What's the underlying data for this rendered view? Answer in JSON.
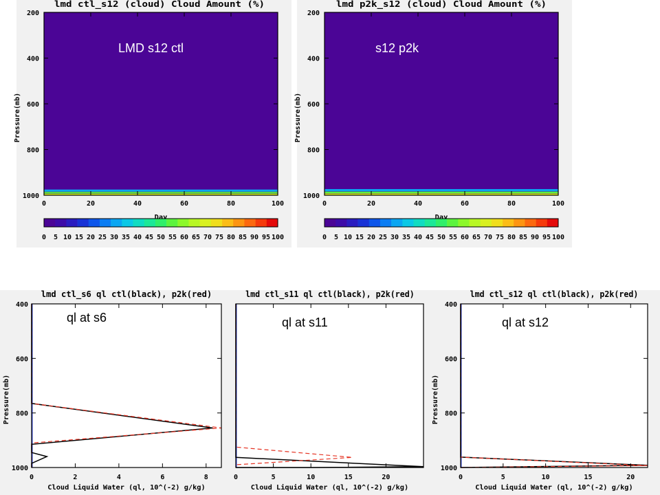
{
  "chart_data": [
    {
      "type": "heatmap",
      "title": "lmd ctl_s12  (cloud)  Cloud Amount (%)",
      "annotation": "LMD s12 ctl",
      "xlabel": "Day",
      "ylabel": "Pressure(mb)",
      "xlim": [
        0,
        100
      ],
      "ylim": [
        1000,
        200
      ],
      "xticks": [
        "0",
        "20",
        "40",
        "60",
        "80",
        "100"
      ],
      "yticks": [
        "200",
        "400",
        "600",
        "800",
        "1000"
      ],
      "background_value": 0,
      "bands": [
        {
          "p_top": 975,
          "p_bottom": 985,
          "value": 30
        },
        {
          "p_top": 985,
          "p_bottom": 993,
          "value": 55
        },
        {
          "p_top": 993,
          "p_bottom": 1000,
          "value": 70
        }
      ],
      "colorbar": {
        "labels": [
          "0",
          "5",
          "10",
          "15",
          "20",
          "25",
          "30",
          "35",
          "40",
          "45",
          "50",
          "55",
          "60",
          "65",
          "70",
          "75",
          "80",
          "85",
          "90",
          "95",
          "100"
        ],
        "colors": [
          "#4b0596",
          "#3d0ba8",
          "#2a1cc0",
          "#1832d6",
          "#0d55ea",
          "#0b7df3",
          "#0aa6f2",
          "#0ac8e6",
          "#10dcc2",
          "#1ce898",
          "#30ef6a",
          "#5cf43e",
          "#8cf82a",
          "#b8f724",
          "#d9f020",
          "#f0de1c",
          "#fbbd17",
          "#fd9512",
          "#fc690f",
          "#f53a0b",
          "#e40a0a"
        ]
      }
    },
    {
      "type": "heatmap",
      "title": "lmd p2k_s12  (cloud)  Cloud Amount (%)",
      "annotation": "s12 p2k",
      "xlabel": "Day",
      "ylabel": "Pressure(mb)",
      "xlim": [
        0,
        100
      ],
      "ylim": [
        1000,
        200
      ],
      "xticks": [
        "0",
        "20",
        "40",
        "60",
        "80",
        "100"
      ],
      "yticks": [
        "200",
        "400",
        "600",
        "800",
        "1000"
      ],
      "background_value": 0,
      "bands": [
        {
          "p_top": 973,
          "p_bottom": 984,
          "value": 30
        },
        {
          "p_top": 984,
          "p_bottom": 992,
          "value": 55
        },
        {
          "p_top": 992,
          "p_bottom": 1000,
          "value": 70
        }
      ],
      "colorbar": {
        "labels": [
          "0",
          "5",
          "10",
          "15",
          "20",
          "25",
          "30",
          "35",
          "40",
          "45",
          "50",
          "55",
          "60",
          "65",
          "70",
          "75",
          "80",
          "85",
          "90",
          "95",
          "100"
        ],
        "colors": [
          "#4b0596",
          "#3d0ba8",
          "#2a1cc0",
          "#1832d6",
          "#0d55ea",
          "#0b7df3",
          "#0aa6f2",
          "#0ac8e6",
          "#10dcc2",
          "#1ce898",
          "#30ef6a",
          "#5cf43e",
          "#8cf82a",
          "#b8f724",
          "#d9f020",
          "#f0de1c",
          "#fbbd17",
          "#fd9512",
          "#fc690f",
          "#f53a0b",
          "#e40a0a"
        ]
      }
    },
    {
      "type": "line",
      "title": "lmd ctl_s6 ql ctl(black), p2k(red)",
      "annotation": "ql at s6",
      "xlabel": "Cloud Liquid Water (ql, 10^(-2) g/kg)",
      "ylabel": "Pressure(mb)",
      "xlim": [
        0,
        8.7
      ],
      "ylim": [
        1000,
        400
      ],
      "xticks": [
        "0",
        "2",
        "4",
        "6",
        "8"
      ],
      "yticks": [
        "400",
        "600",
        "800",
        "1000"
      ],
      "series": [
        {
          "color": "#000000",
          "style": "solid",
          "points": [
            [
              0,
              400
            ],
            [
              0,
              765
            ],
            [
              8.3,
              855
            ],
            [
              0,
              915
            ],
            [
              0,
              945
            ],
            [
              0.7,
              960
            ],
            [
              0,
              985
            ],
            [
              0,
              1000
            ]
          ]
        },
        {
          "color": "#e53222",
          "style": "dashed",
          "points": [
            [
              0,
              400
            ],
            [
              0,
              765
            ],
            [
              8.7,
              855
            ],
            [
              0,
              910
            ],
            [
              0,
              1000
            ]
          ]
        }
      ]
    },
    {
      "type": "line",
      "title": "lmd ctl_s11 ql ctl(black), p2k(red)",
      "annotation": "ql at s11",
      "xlabel": "Cloud Liquid Water (ql, 10^(-2) g/kg)",
      "ylabel": "",
      "xlim": [
        0,
        25
      ],
      "ylim": [
        1000,
        400
      ],
      "xticks": [
        "0",
        "5",
        "10",
        "15",
        "20"
      ],
      "yticks": [],
      "series": [
        {
          "color": "#000000",
          "style": "solid",
          "points": [
            [
              0,
              400
            ],
            [
              0,
              963
            ],
            [
              25,
              997
            ],
            [
              10,
              1000
            ],
            [
              0,
              1000
            ]
          ]
        },
        {
          "color": "#e53222",
          "style": "dashed",
          "points": [
            [
              0,
              400
            ],
            [
              0,
              925
            ],
            [
              15.5,
              963
            ],
            [
              0,
              990
            ],
            [
              0,
              1000
            ]
          ]
        }
      ]
    },
    {
      "type": "line",
      "title": "lmd ctl_s12 ql ctl(black), p2k(red)",
      "annotation": "ql at s12",
      "xlabel": "Cloud Liquid Water (ql, 10^(-2) g/kg)",
      "ylabel": "Pressure(mb)",
      "xlim": [
        0,
        22
      ],
      "ylim": [
        1000,
        400
      ],
      "xticks": [
        "0",
        "5",
        "10",
        "15",
        "20"
      ],
      "yticks": [
        "400",
        "600",
        "800",
        "1000"
      ],
      "series": [
        {
          "color": "#000000",
          "style": "solid",
          "points": [
            [
              0,
              400
            ],
            [
              0,
              962
            ],
            [
              22,
              992
            ],
            [
              0,
              1000
            ]
          ]
        },
        {
          "color": "#e53222",
          "style": "dashed",
          "points": [
            [
              0,
              400
            ],
            [
              0,
              962
            ],
            [
              22,
              993
            ],
            [
              0,
              1000
            ]
          ]
        }
      ]
    }
  ],
  "colors": {
    "panel_bg": "#f1f1f1",
    "axis": "#000000",
    "annotation_white": "#ffffff",
    "annotation_black": "#000000"
  }
}
